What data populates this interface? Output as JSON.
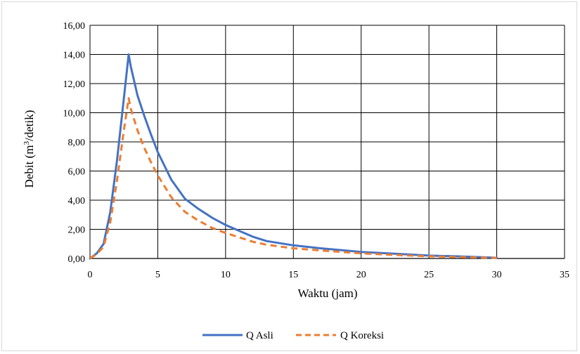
{
  "chart_data": {
    "type": "line",
    "xlabel": "Waktu (jam)",
    "ylabel_main": "Debit (m",
    "ylabel_sup": "3",
    "ylabel_tail": "/detik)",
    "xlim": [
      0,
      35
    ],
    "ylim": [
      0,
      16
    ],
    "xticks": [
      0,
      5,
      10,
      15,
      20,
      25,
      30,
      35
    ],
    "xtick_labels": [
      "0",
      "5",
      "10",
      "15",
      "20",
      "25",
      "30",
      "35"
    ],
    "yticks": [
      0,
      2,
      4,
      6,
      8,
      10,
      12,
      14,
      16
    ],
    "ytick_labels": [
      "0,00",
      "2,00",
      "4,00",
      "6,00",
      "8,00",
      "10,00",
      "12,00",
      "14,00",
      "16,00"
    ],
    "grid": true,
    "legend_position": "bottom",
    "series": [
      {
        "name": "Q Asli",
        "color": "#4472c4",
        "dash": "solid",
        "x": [
          0,
          0.5,
          1,
          1.5,
          2,
          2.5,
          2.85,
          3,
          3.5,
          4,
          4.5,
          5,
          6,
          7,
          8,
          9,
          10,
          11,
          12,
          13,
          14,
          15,
          17,
          20,
          23,
          25,
          27,
          30
        ],
        "y": [
          0,
          0.35,
          1.0,
          3.2,
          6.8,
          11.0,
          14.0,
          13.2,
          11.2,
          9.8,
          8.5,
          7.3,
          5.4,
          4.1,
          3.4,
          2.8,
          2.3,
          1.9,
          1.5,
          1.2,
          1.05,
          0.9,
          0.7,
          0.45,
          0.3,
          0.2,
          0.15,
          0.05
        ]
      },
      {
        "name": "Q Koreksi",
        "color": "#ed7d31",
        "dash": "dashed",
        "x": [
          0,
          0.5,
          1,
          1.5,
          2,
          2.5,
          2.85,
          3,
          3.5,
          4,
          4.5,
          5,
          6,
          7,
          8,
          9,
          10,
          11,
          12,
          13,
          14,
          15,
          17,
          20,
          23,
          25,
          27,
          30
        ],
        "y": [
          0,
          0.3,
          0.8,
          2.5,
          5.4,
          8.8,
          11.0,
          10.3,
          8.8,
          7.6,
          6.6,
          5.7,
          4.2,
          3.2,
          2.6,
          2.1,
          1.75,
          1.45,
          1.15,
          0.95,
          0.82,
          0.7,
          0.55,
          0.35,
          0.22,
          0.15,
          0.1,
          0.04
        ]
      }
    ]
  }
}
